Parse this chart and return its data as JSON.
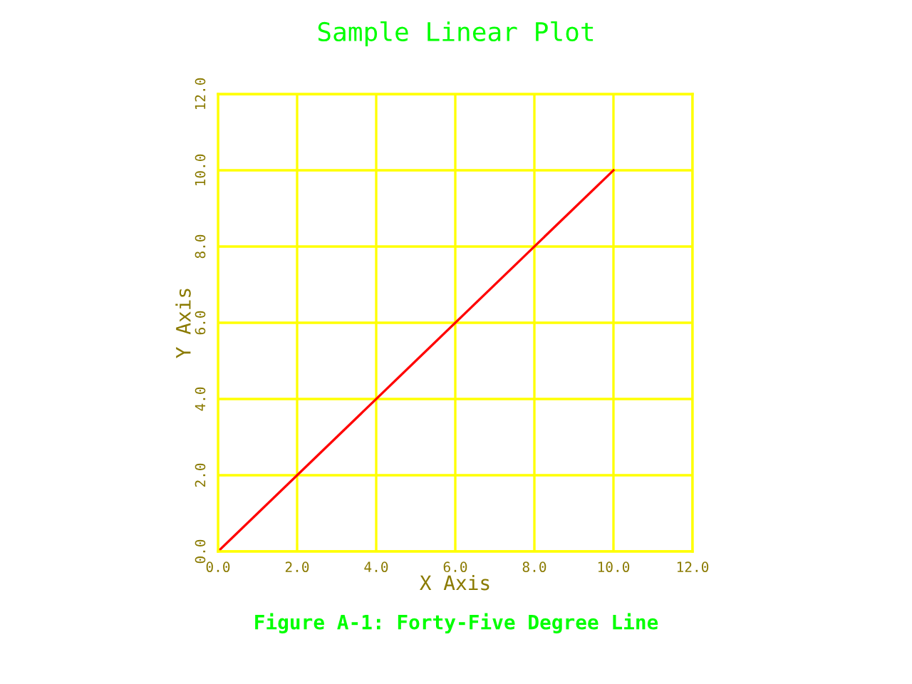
{
  "chart_data": {
    "type": "line",
    "title": "Sample Linear Plot",
    "xlabel": "X Axis",
    "ylabel": "Y Axis",
    "annotations": [
      "Figure A-1: Forty-Five Degree Line"
    ],
    "x": [
      0,
      10
    ],
    "series": [
      {
        "color": "#ff0000",
        "values": [
          0,
          10
        ]
      }
    ],
    "xlim": [
      0,
      12
    ],
    "ylim": [
      0,
      12
    ],
    "xticks": [
      {
        "value": 0,
        "label": "0.0"
      },
      {
        "value": 2,
        "label": "2.0"
      },
      {
        "value": 4,
        "label": "4.0"
      },
      {
        "value": 6,
        "label": "6.0"
      },
      {
        "value": 8,
        "label": "8.0"
      },
      {
        "value": 10,
        "label": "10.0"
      },
      {
        "value": 12,
        "label": "12.0"
      }
    ],
    "yticks": [
      {
        "value": 0,
        "label": "0.0"
      },
      {
        "value": 2,
        "label": "2.0"
      },
      {
        "value": 4,
        "label": "4.0"
      },
      {
        "value": 6,
        "label": "6.0"
      },
      {
        "value": 8,
        "label": "8.0"
      },
      {
        "value": 10,
        "label": "10.0"
      },
      {
        "value": 12,
        "label": "12.0"
      }
    ],
    "grid": true
  }
}
